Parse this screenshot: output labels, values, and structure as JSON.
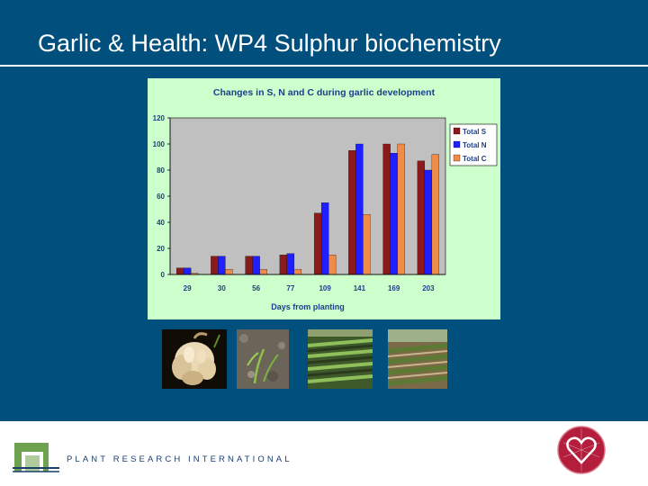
{
  "slide": {
    "title": "Garlic & Health: WP4 Sulphur biochemistry"
  },
  "chart_data": {
    "type": "bar",
    "title": "Changes in S, N and C during garlic development",
    "xlabel": "Days from planting",
    "ylabel": "",
    "categories": [
      "29",
      "30",
      "56",
      "77",
      "109",
      "141",
      "169",
      "203"
    ],
    "series": [
      {
        "name": "Total S",
        "color": "#8b1a1a",
        "values": [
          5,
          14,
          14,
          15,
          47,
          95,
          100,
          87
        ]
      },
      {
        "name": "Total N",
        "color": "#1f1fff",
        "values": [
          5,
          14,
          14,
          16,
          55,
          100,
          93,
          80
        ]
      },
      {
        "name": "Total C",
        "color": "#f08c4a",
        "values": [
          1,
          4,
          4,
          4,
          15,
          46,
          100,
          92
        ]
      }
    ],
    "ylim": [
      0,
      120
    ],
    "yticks": [
      "0",
      "20",
      "40",
      "60",
      "80",
      "100",
      "120"
    ],
    "grid": false,
    "plot_background": "#c0c0c0",
    "legend_position": "right"
  },
  "photos": [
    {
      "subject": "garlic bulb and cloves"
    },
    {
      "subject": "garlic seedlings in soil"
    },
    {
      "subject": "young garlic plants in rows"
    },
    {
      "subject": "mature garlic crop in field"
    }
  ],
  "footer": {
    "organization": "PLANT RESEARCH INTERNATIONAL"
  },
  "colors": {
    "slide_background": "#004f7c",
    "chart_panel": "#ccffcc",
    "brand_blue": "#1b3f6b",
    "logo_green": "#6fa24e",
    "emblem_red": "#b41e3c"
  }
}
